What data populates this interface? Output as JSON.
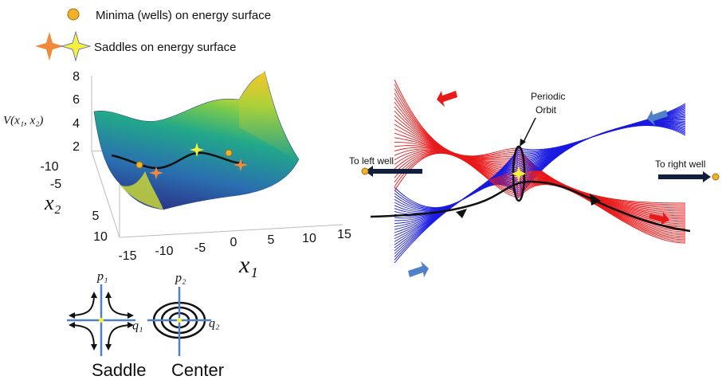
{
  "legend": {
    "minima": "Minima (wells) on energy surface",
    "saddles": "Saddles on energy surface"
  },
  "surface": {
    "z_label": "V(x₁, x₂)",
    "z_ticks": [
      "8",
      "6",
      "4",
      "2"
    ],
    "x2_label": "x₂",
    "x2_ticks": [
      "-10",
      "-5",
      "5",
      "10"
    ],
    "x1_label": "x₁",
    "x1_ticks": [
      "-15",
      "-10",
      "-5",
      "0",
      "5",
      "10",
      "15"
    ]
  },
  "phase": {
    "p1": "p₁",
    "q1": "q₁",
    "p2": "p₂",
    "q2": "q₂",
    "saddle": "Saddle",
    "center": "Center"
  },
  "tube": {
    "periodic_orbit": [
      "Periodic",
      "Orbit"
    ],
    "left": "To left well",
    "right": "To right well"
  }
}
